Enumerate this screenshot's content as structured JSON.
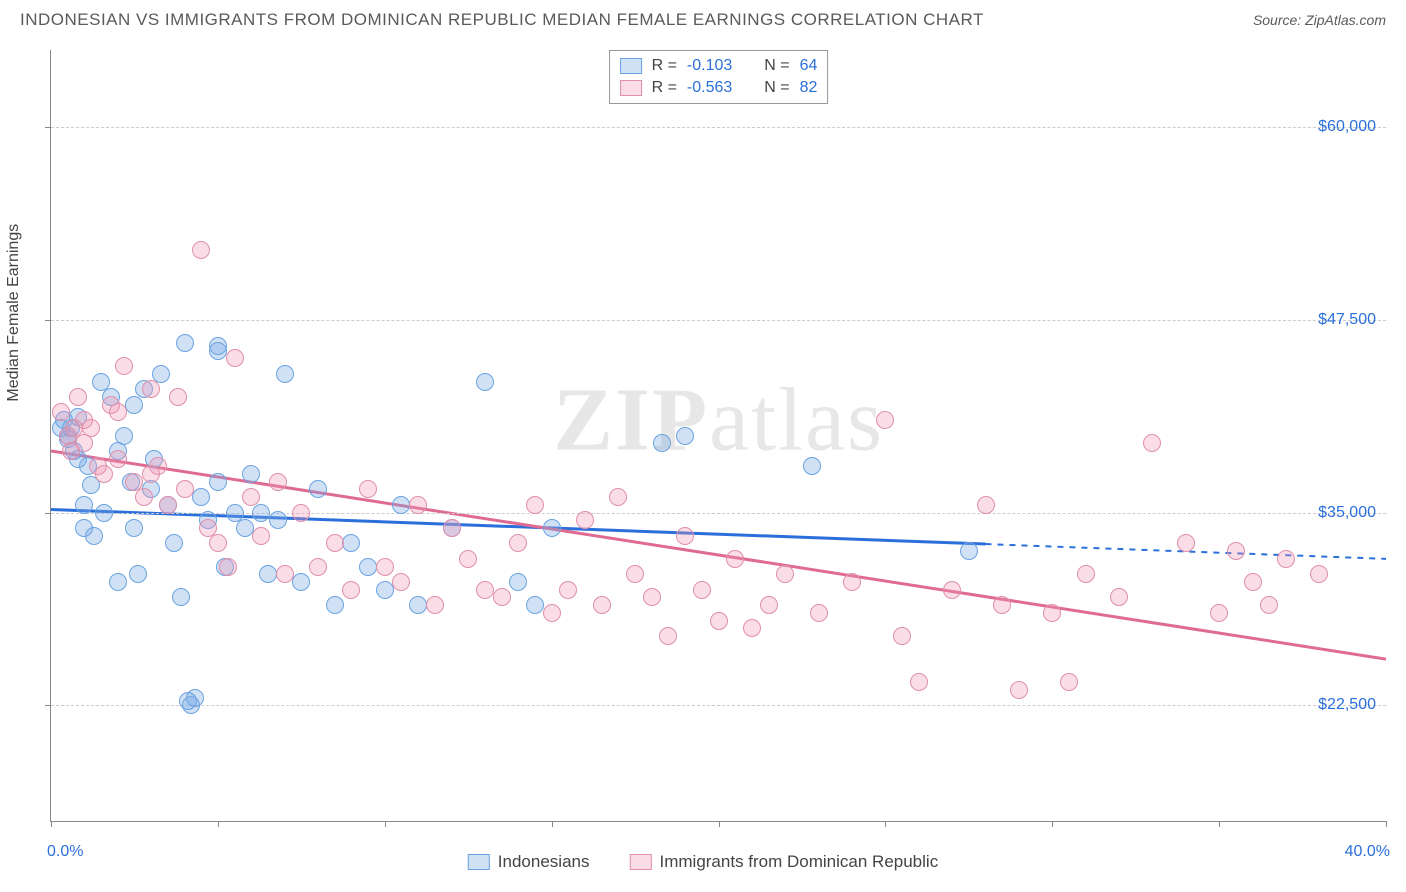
{
  "title": "INDONESIAN VS IMMIGRANTS FROM DOMINICAN REPUBLIC MEDIAN FEMALE EARNINGS CORRELATION CHART",
  "source": "Source: ZipAtlas.com",
  "watermark_a": "ZIP",
  "watermark_b": "atlas",
  "chart": {
    "type": "scatter",
    "y_axis_label": "Median Female Earnings",
    "x_min": 0.0,
    "x_max": 40.0,
    "x_min_label": "0.0%",
    "x_max_label": "40.0%",
    "y_min": 15000,
    "y_max": 65000,
    "y_gridlines": [
      22500,
      35000,
      47500,
      60000
    ],
    "y_grid_labels": [
      "$22,500",
      "$35,000",
      "$47,500",
      "$60,000"
    ],
    "x_ticks": [
      0,
      5,
      10,
      15,
      20,
      25,
      30,
      35,
      40
    ],
    "background_color": "#ffffff",
    "grid_color": "#cccccc",
    "axis_color": "#888888",
    "series": [
      {
        "name": "Indonesians",
        "fill": "rgba(120,170,230,0.35)",
        "stroke": "#6aa3e0",
        "trend_color": "#2b6fdb",
        "R": "-0.103",
        "N": "64",
        "trend_y_at_xmin": 35200,
        "trend_y_at_xmax": 32000,
        "trend_dash_after_x": 28,
        "points": [
          [
            0.3,
            40500
          ],
          [
            0.4,
            41000
          ],
          [
            0.5,
            39800
          ],
          [
            0.6,
            40500
          ],
          [
            0.7,
            39000
          ],
          [
            0.8,
            41200
          ],
          [
            1.0,
            35500
          ],
          [
            1.1,
            38000
          ],
          [
            1.2,
            36800
          ],
          [
            1.3,
            33500
          ],
          [
            1.5,
            43500
          ],
          [
            1.6,
            35000
          ],
          [
            1.8,
            42500
          ],
          [
            2.0,
            30500
          ],
          [
            2.2,
            40000
          ],
          [
            2.4,
            37000
          ],
          [
            2.5,
            34000
          ],
          [
            2.6,
            31000
          ],
          [
            2.8,
            43000
          ],
          [
            3.0,
            36500
          ],
          [
            3.1,
            38500
          ],
          [
            3.3,
            44000
          ],
          [
            3.5,
            35500
          ],
          [
            3.7,
            33000
          ],
          [
            3.9,
            29500
          ],
          [
            4.0,
            46000
          ],
          [
            4.2,
            22500
          ],
          [
            4.3,
            23000
          ],
          [
            4.5,
            36000
          ],
          [
            4.7,
            34500
          ],
          [
            5.0,
            45500
          ],
          [
            5.2,
            31500
          ],
          [
            5.5,
            35000
          ],
          [
            5.8,
            34000
          ],
          [
            6.0,
            37500
          ],
          [
            6.3,
            35000
          ],
          [
            6.5,
            31000
          ],
          [
            6.8,
            34500
          ],
          [
            7.0,
            44000
          ],
          [
            7.5,
            30500
          ],
          [
            8.0,
            36500
          ],
          [
            8.5,
            29000
          ],
          [
            9.0,
            33000
          ],
          [
            9.5,
            31500
          ],
          [
            10.0,
            30000
          ],
          [
            10.5,
            35500
          ],
          [
            11.0,
            29000
          ],
          [
            12.0,
            34000
          ],
          [
            13.0,
            43500
          ],
          [
            14.0,
            30500
          ],
          [
            14.5,
            29000
          ],
          [
            15.0,
            34000
          ],
          [
            18.3,
            39500
          ],
          [
            19.0,
            40000
          ],
          [
            22.8,
            38000
          ],
          [
            27.5,
            32500
          ],
          [
            5.0,
            45800
          ],
          [
            5.0,
            37000
          ],
          [
            4.1,
            22800
          ],
          [
            2.0,
            39000
          ],
          [
            2.5,
            42000
          ],
          [
            1.0,
            34000
          ],
          [
            0.5,
            40000
          ],
          [
            0.8,
            38500
          ]
        ]
      },
      {
        "name": "Immigrants from Dominican Republic",
        "fill": "rgba(240,150,180,0.32)",
        "stroke": "#e08fab",
        "trend_color": "#e06b92",
        "R": "-0.563",
        "N": "82",
        "trend_y_at_xmin": 39000,
        "trend_y_at_xmax": 25500,
        "trend_dash_after_x": 40,
        "points": [
          [
            0.3,
            41500
          ],
          [
            0.5,
            40000
          ],
          [
            0.7,
            40500
          ],
          [
            0.8,
            42500
          ],
          [
            1.0,
            39500
          ],
          [
            1.2,
            40500
          ],
          [
            1.4,
            38000
          ],
          [
            1.6,
            37500
          ],
          [
            1.8,
            42000
          ],
          [
            2.0,
            38500
          ],
          [
            2.2,
            44500
          ],
          [
            2.5,
            37000
          ],
          [
            2.8,
            36000
          ],
          [
            3.0,
            43000
          ],
          [
            3.2,
            38000
          ],
          [
            3.5,
            35500
          ],
          [
            3.8,
            42500
          ],
          [
            4.0,
            36500
          ],
          [
            4.5,
            52000
          ],
          [
            4.7,
            34000
          ],
          [
            5.0,
            33000
          ],
          [
            5.3,
            31500
          ],
          [
            5.5,
            45000
          ],
          [
            6.0,
            36000
          ],
          [
            6.3,
            33500
          ],
          [
            6.8,
            37000
          ],
          [
            7.0,
            31000
          ],
          [
            7.5,
            35000
          ],
          [
            8.0,
            31500
          ],
          [
            8.5,
            33000
          ],
          [
            9.0,
            30000
          ],
          [
            9.5,
            36500
          ],
          [
            10.0,
            31500
          ],
          [
            10.5,
            30500
          ],
          [
            11.0,
            35500
          ],
          [
            11.5,
            29000
          ],
          [
            12.0,
            34000
          ],
          [
            12.5,
            32000
          ],
          [
            13.0,
            30000
          ],
          [
            13.5,
            29500
          ],
          [
            14.0,
            33000
          ],
          [
            14.5,
            35500
          ],
          [
            15.0,
            28500
          ],
          [
            15.5,
            30000
          ],
          [
            16.0,
            34500
          ],
          [
            16.5,
            29000
          ],
          [
            17.0,
            36000
          ],
          [
            17.5,
            31000
          ],
          [
            18.0,
            29500
          ],
          [
            18.5,
            27000
          ],
          [
            19.0,
            33500
          ],
          [
            19.5,
            30000
          ],
          [
            20.0,
            28000
          ],
          [
            20.5,
            32000
          ],
          [
            21.0,
            27500
          ],
          [
            21.5,
            29000
          ],
          [
            22.0,
            31000
          ],
          [
            23.0,
            28500
          ],
          [
            24.0,
            30500
          ],
          [
            25.0,
            41000
          ],
          [
            25.5,
            27000
          ],
          [
            26.0,
            24000
          ],
          [
            27.0,
            30000
          ],
          [
            28.0,
            35500
          ],
          [
            28.5,
            29000
          ],
          [
            29.0,
            23500
          ],
          [
            30.0,
            28500
          ],
          [
            30.5,
            24000
          ],
          [
            31.0,
            31000
          ],
          [
            32.0,
            29500
          ],
          [
            33.0,
            39500
          ],
          [
            34.0,
            33000
          ],
          [
            35.0,
            28500
          ],
          [
            35.5,
            32500
          ],
          [
            36.0,
            30500
          ],
          [
            36.5,
            29000
          ],
          [
            37.0,
            32000
          ],
          [
            38.0,
            31000
          ],
          [
            1.0,
            41000
          ],
          [
            2.0,
            41500
          ],
          [
            0.6,
            39000
          ],
          [
            3.0,
            37500
          ]
        ]
      }
    ]
  },
  "legend_top": {
    "r_label": "R =",
    "n_label": "N ="
  }
}
